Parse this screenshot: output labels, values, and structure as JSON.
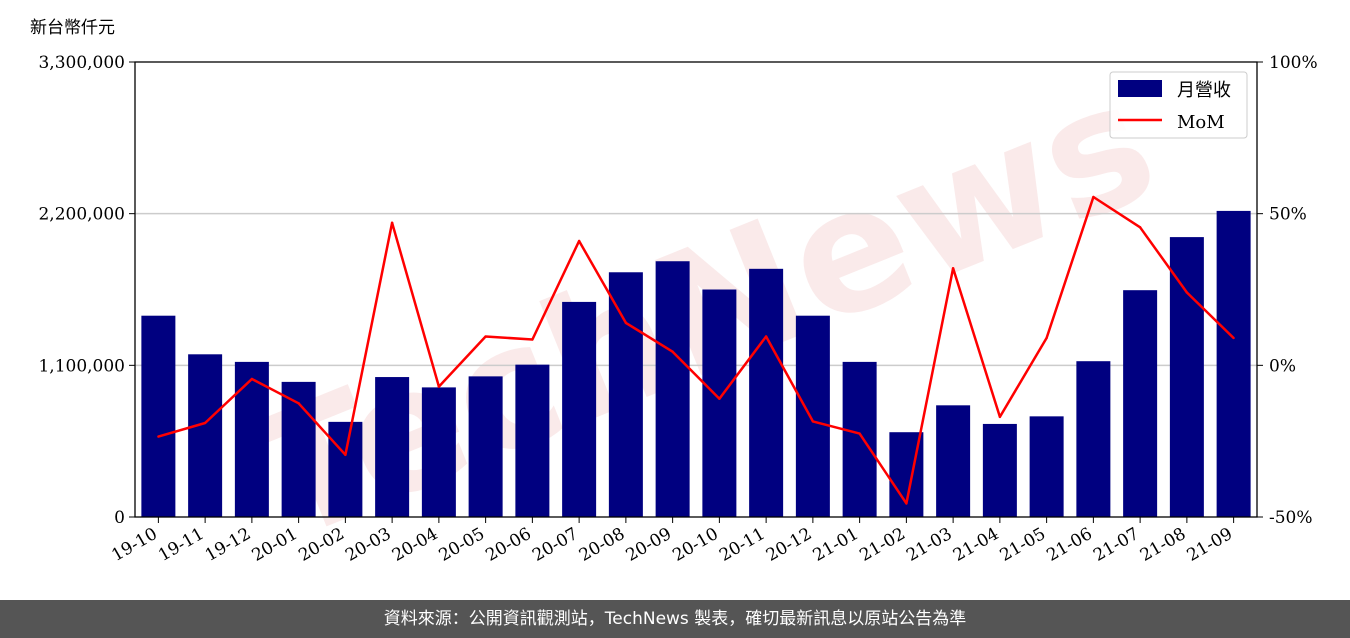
{
  "chart_data": {
    "type": "bar",
    "unit_label": "新台幣仟元",
    "categories": [
      "19-10",
      "19-11",
      "19-12",
      "20-01",
      "20-02",
      "20-03",
      "20-04",
      "20-05",
      "20-06",
      "20-07",
      "20-08",
      "20-09",
      "20-10",
      "20-11",
      "20-12",
      "21-01",
      "21-02",
      "21-03",
      "21-04",
      "21-05",
      "21-06",
      "21-07",
      "21-08",
      "21-09"
    ],
    "series": [
      {
        "name": "月營收",
        "axis": "left",
        "type": "bar",
        "color": "#000080",
        "values": [
          1460000,
          1180000,
          1125000,
          980000,
          690000,
          1015000,
          940000,
          1020000,
          1105000,
          1560000,
          1775000,
          1855000,
          1650000,
          1800000,
          1460000,
          1125000,
          615000,
          810000,
          675000,
          730000,
          1130000,
          1645000,
          2030000,
          2220000
        ]
      },
      {
        "name": "MoM",
        "axis": "right",
        "type": "line",
        "color": "#ff0000",
        "values": [
          -23.5,
          -19,
          -4.5,
          -12.5,
          -29.5,
          47,
          -7,
          9.5,
          8.5,
          41,
          14,
          4.5,
          -11,
          9.5,
          -18.5,
          -22.5,
          -45.5,
          32,
          -17,
          9,
          55.5,
          45.5,
          24,
          9
        ]
      }
    ],
    "y_left": {
      "ylim": [
        0,
        3300000
      ],
      "ticks": [
        "0",
        "1,100,000",
        "2,200,000",
        "3,300,000"
      ],
      "tick_values": [
        0,
        1100000,
        2200000,
        3300000
      ]
    },
    "y_right": {
      "ylim": [
        -50,
        100
      ],
      "ticks": [
        "-50%",
        "0%",
        "50%",
        "100%"
      ],
      "tick_values": [
        -50,
        0,
        50,
        100
      ]
    },
    "grid": "horizontal",
    "legend_position": "top-right",
    "watermark": "TechNews"
  },
  "footer": {
    "text": "資料來源：公開資訊觀測站，TechNews 製表，確切最新訊息以原站公告為準"
  }
}
